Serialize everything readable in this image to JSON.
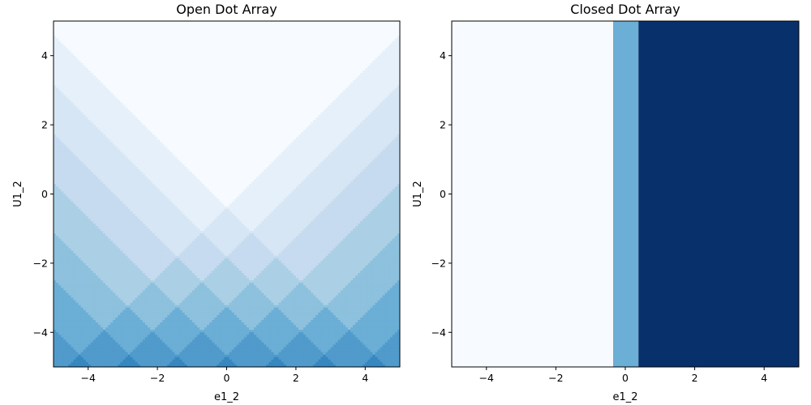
{
  "chart_data": [
    {
      "type": "heatmap",
      "title": "Open Dot Array",
      "xlabel": "e1_2",
      "ylabel": "U1_2",
      "xlim": [
        -5,
        5
      ],
      "ylim": [
        -5,
        5
      ],
      "xticks": [
        -4,
        -2,
        0,
        2,
        4
      ],
      "yticks": [
        -4,
        -2,
        0,
        2,
        4
      ],
      "xtick_labels": [
        "−4",
        "−2",
        "0",
        "2",
        "4"
      ],
      "ytick_labels": [
        "−4",
        "−2",
        "0",
        "2",
        "4"
      ],
      "colormap": "Blues",
      "grid": false,
      "value_function": "sum of two diagonal staircases: floor((-x-y)/1.414) + floor((x-y)/1.414), clipped below at 0",
      "levels": 13,
      "value_range": [
        0,
        12
      ]
    },
    {
      "type": "heatmap",
      "title": "Closed Dot Array",
      "xlabel": "e1_2",
      "ylabel": "U1_2",
      "xlim": [
        -5,
        5
      ],
      "ylim": [
        -5,
        5
      ],
      "xticks": [
        -4,
        -2,
        0,
        2,
        4
      ],
      "yticks": [
        -4,
        -2,
        0,
        2,
        4
      ],
      "xtick_labels": [
        "−4",
        "−2",
        "0",
        "2",
        "4"
      ],
      "ytick_labels": [
        "−4",
        "−2",
        "0",
        "2",
        "4"
      ],
      "colormap": "Blues",
      "grid": false,
      "bands": [
        {
          "x_from": -5,
          "x_to": -0.35,
          "value": 0
        },
        {
          "x_from": -0.35,
          "x_to": 0.38,
          "value": 0.5
        },
        {
          "x_from": 0.38,
          "x_to": 5,
          "value": 1
        }
      ],
      "colors": [
        "#f7fbff",
        "#6baed6",
        "#08306b"
      ]
    }
  ]
}
